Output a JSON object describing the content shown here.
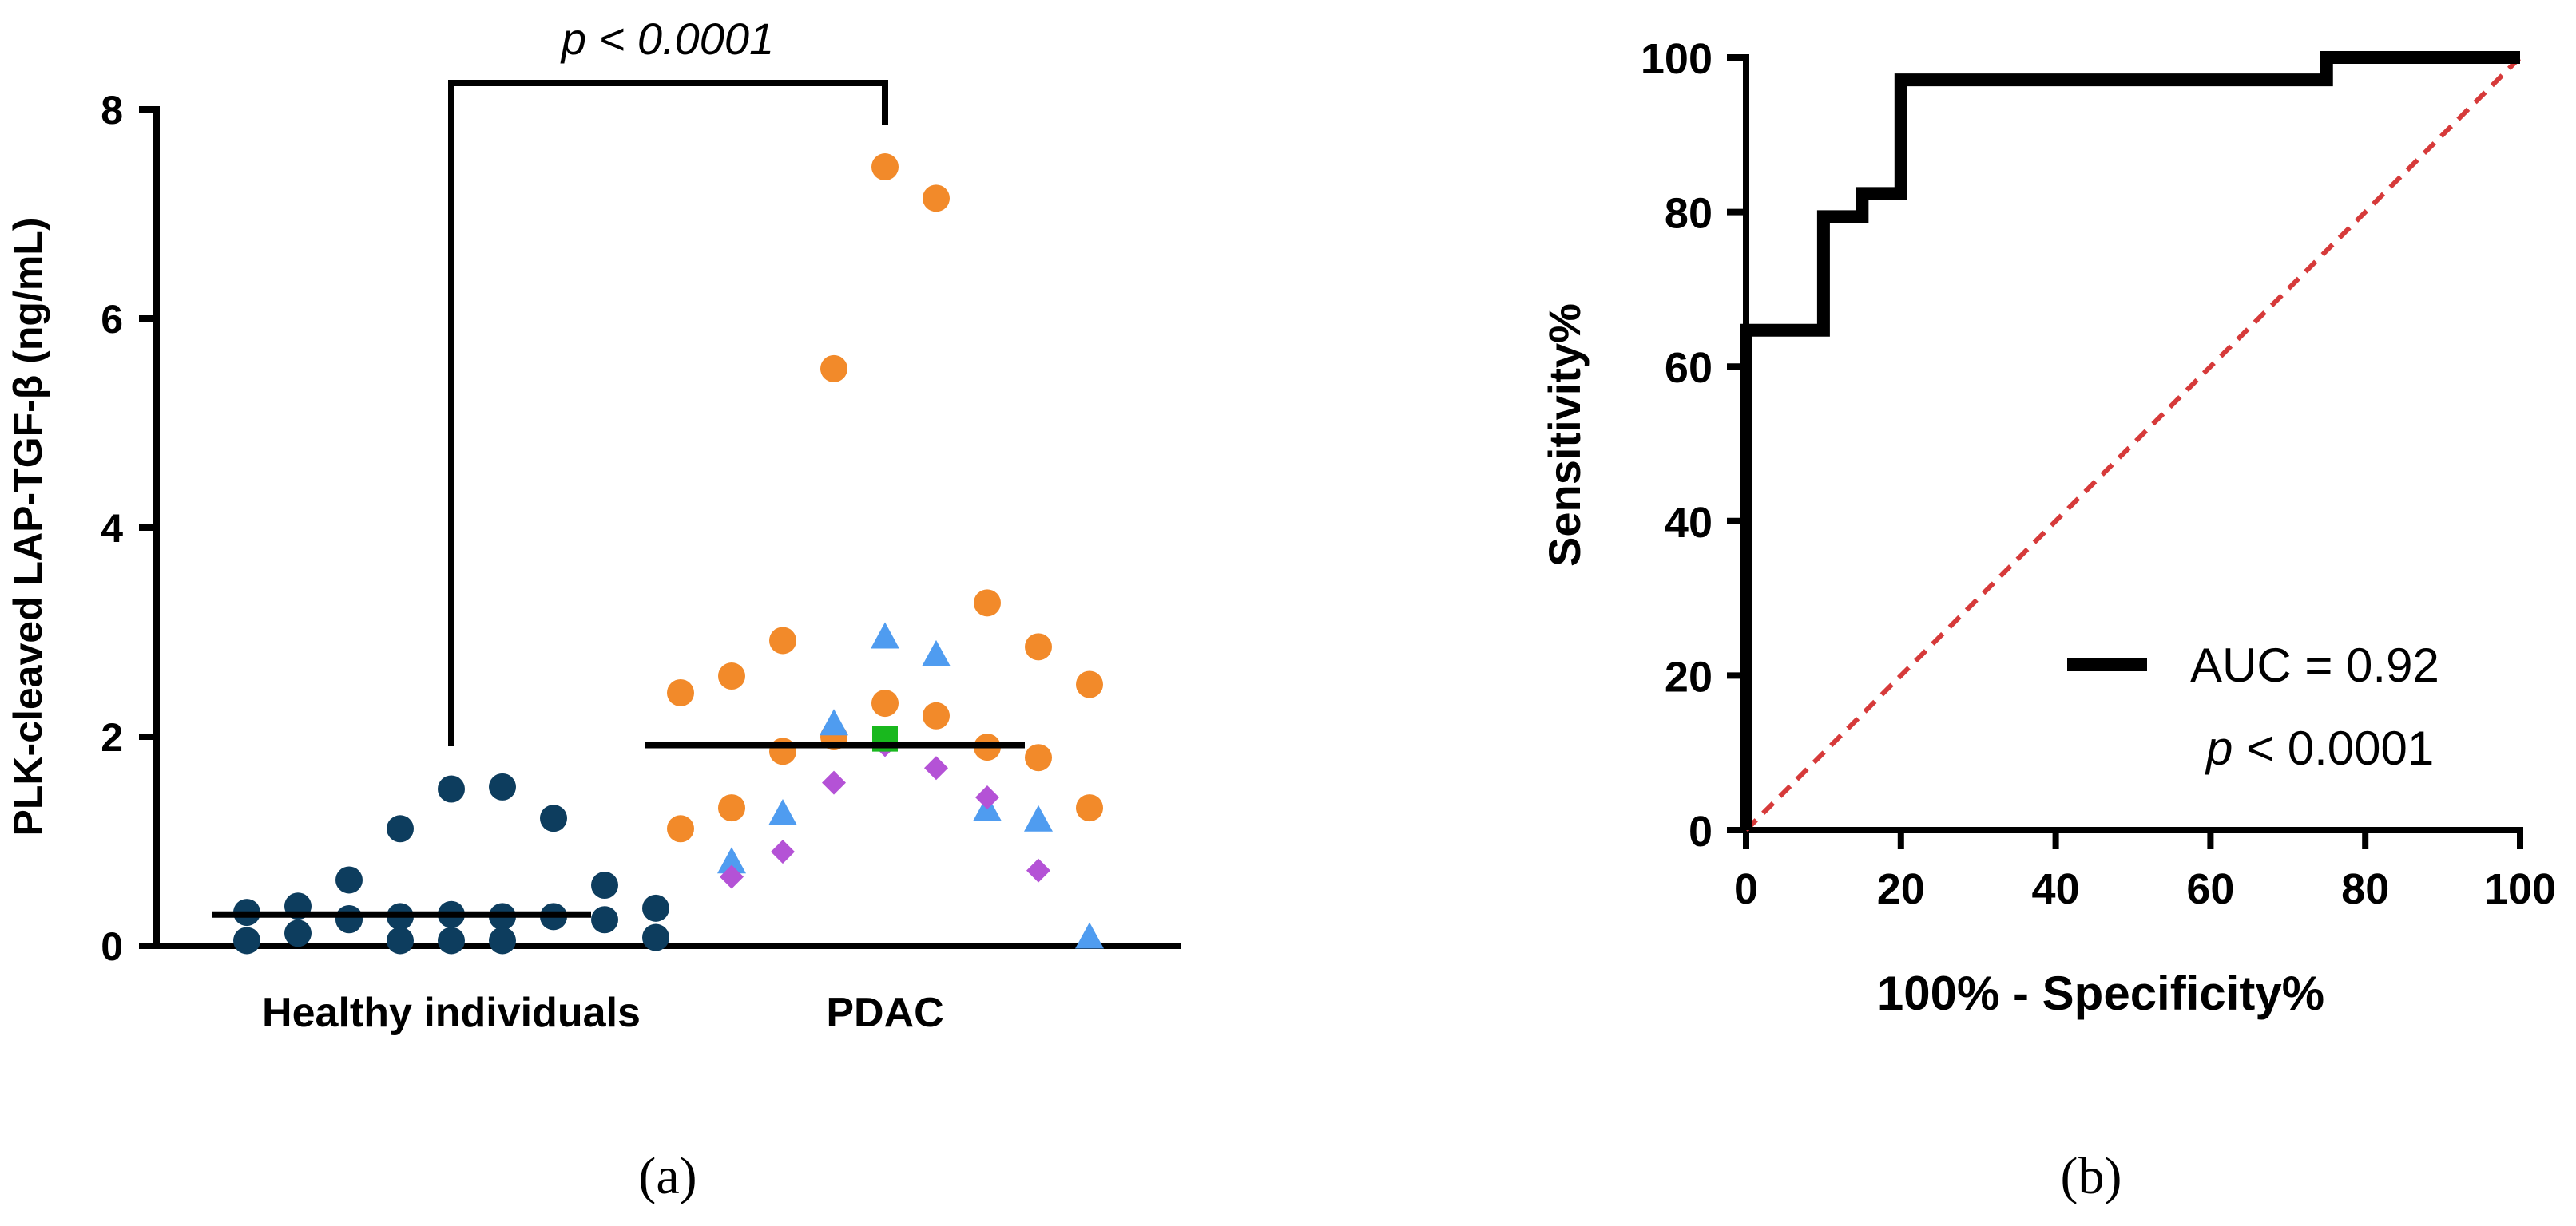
{
  "chart_data": [
    {
      "panel": "(a)",
      "type": "scatter",
      "ylabel": "PLK-cleaved LAP-TGF-β (ng/mL)",
      "ylim": [
        0,
        8
      ],
      "yticks": [
        "0",
        "2",
        "4",
        "6",
        "8"
      ],
      "categories": [
        "Healthy individuals",
        "PDAC"
      ],
      "significance": {
        "text": "p < 0.0001",
        "between": [
          "Healthy individuals",
          "PDAC"
        ]
      },
      "colors": {
        "healthy": "#0d3d5e",
        "orange": "#f28a2a",
        "blue": "#4f9cf0",
        "purple": "#b452d6",
        "green": "#19b81e"
      },
      "series": [
        {
          "name": "",
          "category": "Healthy individuals",
          "marker": "circle",
          "color": "#0d3d5e",
          "values": [
            1.5,
            1.52,
            1.12,
            1.22,
            0.63,
            0.58,
            0.38,
            0.36,
            0.32,
            0.3,
            0.28,
            0.28,
            0.28,
            0.26,
            0.25,
            0.25,
            0.12,
            0.08,
            0.05,
            0.05,
            0.05,
            0.05
          ]
        },
        {
          "name": "",
          "category": "PDAC",
          "marker": "circle",
          "color": "#f28a2a",
          "values": [
            7.45,
            7.15,
            5.52,
            3.28,
            2.92,
            2.86,
            2.58,
            2.5,
            2.42,
            2.32,
            2.2,
            2.0,
            1.9,
            1.86,
            1.8,
            1.32,
            1.32,
            1.12
          ]
        },
        {
          "name": "",
          "category": "PDAC",
          "marker": "triangle",
          "color": "#4f9cf0",
          "values": [
            2.95,
            2.78,
            2.12,
            1.3,
            1.26,
            1.2,
            0.8,
            0.08
          ]
        },
        {
          "name": "",
          "category": "PDAC",
          "marker": "diamond",
          "color": "#b452d6",
          "values": [
            1.92,
            1.7,
            1.56,
            1.42,
            0.9,
            0.72,
            0.66
          ]
        },
        {
          "name": "",
          "category": "PDAC",
          "marker": "square",
          "color": "#19b81e",
          "values": [
            1.98
          ]
        }
      ],
      "medians": [
        {
          "category": "Healthy individuals",
          "value": 0.3
        },
        {
          "category": "PDAC",
          "value": 1.92
        }
      ]
    },
    {
      "panel": "(b)",
      "type": "line",
      "xlabel": "100% - Specificity%",
      "ylabel": "Sensitivity%",
      "xlim": [
        0,
        100
      ],
      "ylim": [
        0,
        100
      ],
      "xticks": [
        "0",
        "20",
        "40",
        "60",
        "80",
        "100"
      ],
      "yticks": [
        "0",
        "20",
        "40",
        "60",
        "80",
        "100"
      ],
      "legend": {
        "label": "AUC = 0.92",
        "pvalue_italic": "p",
        "pvalue_rest": " < 0.0001",
        "placement": "bottom-right"
      },
      "series": [
        {
          "name": "AUC = 0.92",
          "color": "#000000",
          "x": [
            0,
            0,
            10,
            10,
            15,
            15,
            20,
            20,
            75,
            75,
            100
          ],
          "y": [
            0,
            64.7,
            64.7,
            79.4,
            79.4,
            82.4,
            82.4,
            97.1,
            97.1,
            100,
            100
          ]
        },
        {
          "name": "",
          "color": "#d63a3a",
          "style": "dashed",
          "x": [
            0,
            100
          ],
          "y": [
            0,
            100
          ]
        }
      ]
    }
  ]
}
